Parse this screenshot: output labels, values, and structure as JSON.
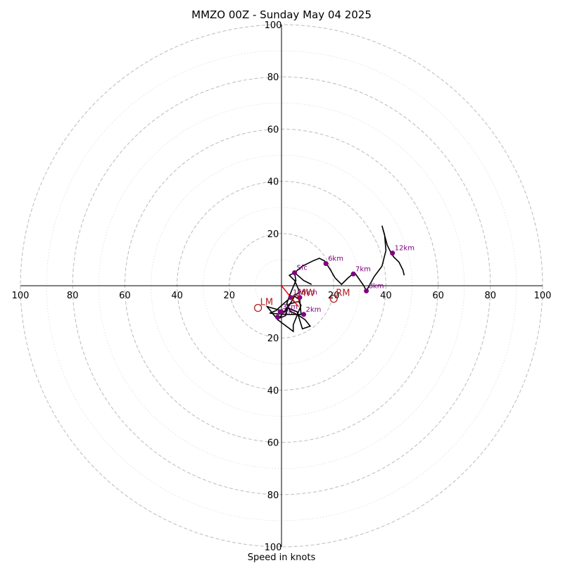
{
  "chart_data": {
    "type": "hodograph",
    "title": "MMZO 00Z - Sunday May 04 2025",
    "xlabel": "Speed in knots",
    "radius_max": 100,
    "ring_step": 20,
    "minor_ring_step": 10,
    "tick_labels": [
      "100",
      "80",
      "60",
      "40",
      "20",
      "20",
      "40",
      "60",
      "80",
      "100"
    ],
    "tick_values": [
      -100,
      -80,
      -60,
      -40,
      -20,
      20,
      40,
      60,
      80,
      100
    ],
    "colors": {
      "trace": "#000000",
      "points": "#800080",
      "labels": "#800080",
      "motion": "#b22222",
      "shear": "#ff0000",
      "grid": "#bbbbbb",
      "axis": "#000000"
    },
    "trace": [
      [
        11.5,
        0.5
      ],
      [
        8.5,
        2.0
      ],
      [
        5.0,
        5.0
      ],
      [
        5.5,
        2.0
      ],
      [
        3.0,
        -4.0
      ],
      [
        2.0,
        -7.0
      ],
      [
        3.5,
        -10.0
      ],
      [
        6.0,
        -11.0
      ],
      [
        9.0,
        -13.0
      ],
      [
        11.0,
        -15.5
      ],
      [
        8.0,
        -16.5
      ],
      [
        6.0,
        -10.0
      ],
      [
        2.5,
        -8.5
      ],
      [
        1.5,
        -11.5
      ],
      [
        -1.0,
        -12.5
      ],
      [
        1.0,
        -10.0
      ],
      [
        3.0,
        -7.0
      ],
      [
        6.5,
        -6.0
      ],
      [
        7.5,
        -7.5
      ],
      [
        4.5,
        -15.0
      ],
      [
        4.5,
        -17.5
      ],
      [
        -1.5,
        -13.0
      ],
      [
        -5.5,
        -8.0
      ],
      [
        1.5,
        -10.0
      ],
      [
        5.0,
        -4.0
      ],
      [
        7.0,
        -5.5
      ],
      [
        7.5,
        -11.0
      ],
      [
        1.5,
        -11.0
      ],
      [
        -4.5,
        -10.5
      ],
      [
        -2.0,
        -9.5
      ],
      [
        -1.0,
        -8.5
      ],
      [
        3.5,
        -4.5
      ],
      [
        7.0,
        -2.5
      ],
      [
        5.0,
        2.0
      ],
      [
        3.0,
        4.0
      ],
      [
        5.0,
        5.0
      ],
      [
        8.0,
        7.5
      ],
      [
        12.0,
        9.5
      ],
      [
        14.5,
        10.5
      ],
      [
        16.5,
        9.5
      ],
      [
        18.5,
        6.5
      ],
      [
        20.5,
        3.0
      ],
      [
        23.0,
        0.5
      ],
      [
        25.5,
        3.0
      ],
      [
        28.0,
        5.0
      ],
      [
        31.5,
        0.0
      ],
      [
        32.5,
        -2.0
      ],
      [
        35.5,
        3.5
      ],
      [
        38.5,
        7.5
      ],
      [
        40.0,
        13.5
      ],
      [
        39.5,
        19.5
      ],
      [
        38.5,
        23.0
      ],
      [
        40.5,
        15.5
      ],
      [
        42.0,
        12.5
      ],
      [
        43.0,
        11.0
      ],
      [
        45.0,
        9.0
      ],
      [
        46.5,
        6.0
      ],
      [
        47.0,
        4.0
      ]
    ],
    "points": [
      {
        "label": "Sfc",
        "x": 5.0,
        "y": 5.0
      },
      {
        "label": "1km",
        "x": 3.5,
        "y": -4.5
      },
      {
        "label": "2km",
        "x": 8.5,
        "y": -11.0
      },
      {
        "label": "3km",
        "x": -0.5,
        "y": -10.0
      },
      {
        "label": "4km",
        "x": -1.5,
        "y": -12.0
      },
      {
        "label": "5km",
        "x": 7.0,
        "y": -4.5
      },
      {
        "label": "6km",
        "x": 17.0,
        "y": 8.5
      },
      {
        "label": "7km",
        "x": 27.5,
        "y": 4.5
      },
      {
        "label": "8km",
        "x": 32.5,
        "y": -2.0
      },
      {
        "label": "12km",
        "x": 42.5,
        "y": 12.5
      }
    ],
    "storm_motion": [
      {
        "label": "LM",
        "x": -9.0,
        "y": -8.5
      },
      {
        "label": "MW",
        "x": 5.5,
        "y": -5.0
      },
      {
        "label": "RM",
        "x": 20.0,
        "y": -5.0
      }
    ],
    "shear_vector": [
      [
        0.0,
        0.0
      ],
      [
        6.5,
        -8.0
      ]
    ]
  }
}
